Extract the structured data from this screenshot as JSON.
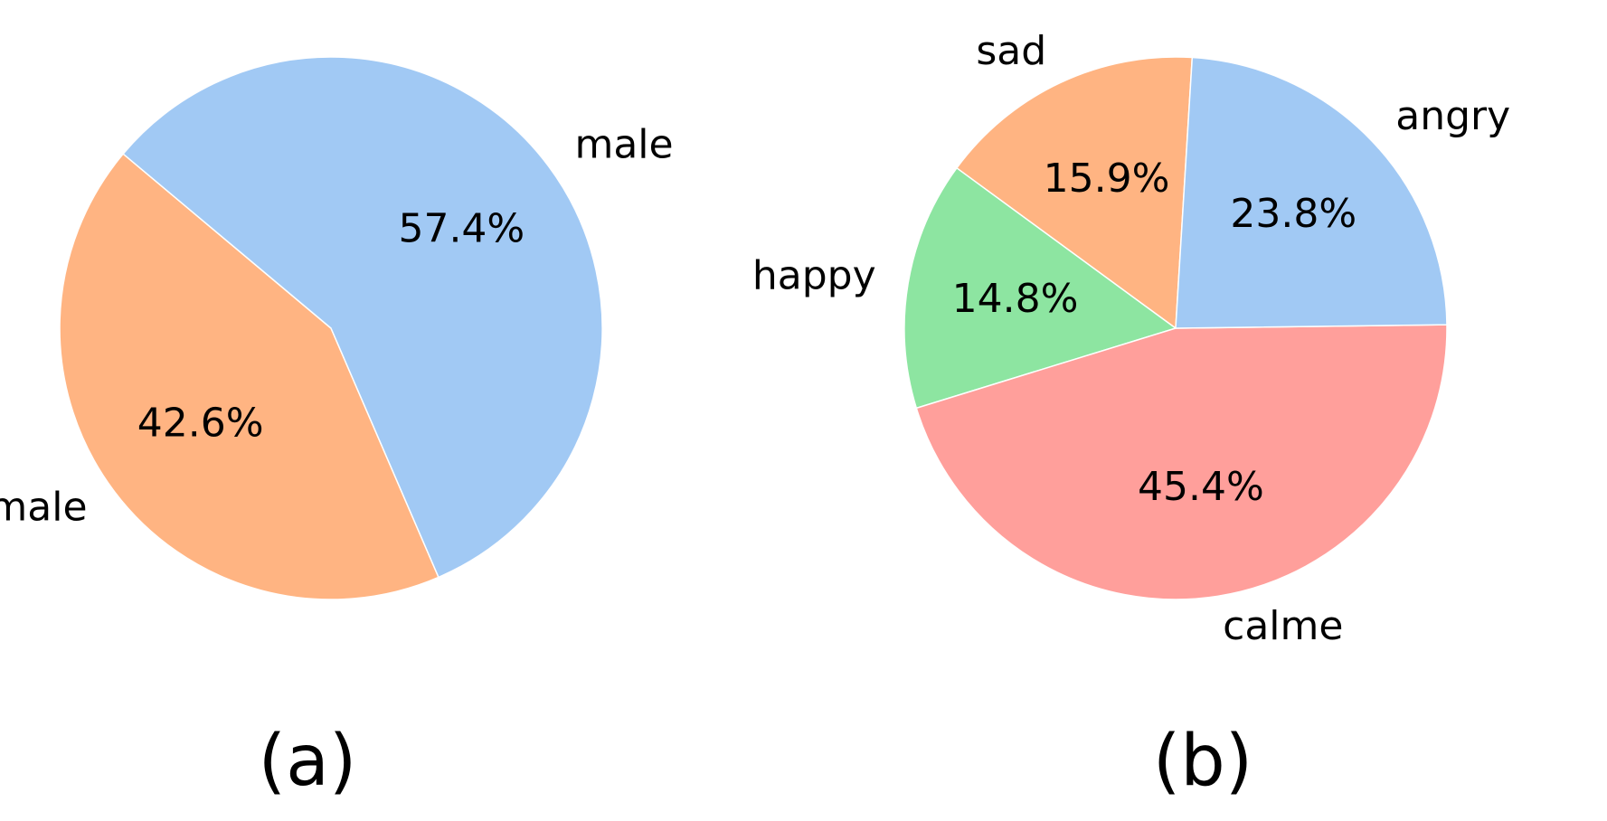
{
  "chart_data": [
    {
      "type": "pie",
      "caption": "(a)",
      "slices": [
        {
          "label": "female",
          "value": 42.6,
          "pct_label": "42.6%",
          "color": "#FFB482"
        },
        {
          "label": "male",
          "value": 57.4,
          "pct_label": "57.4%",
          "color": "#A1C9F4"
        }
      ]
    },
    {
      "type": "pie",
      "caption": "(b)",
      "slices": [
        {
          "label": "sad",
          "value": 15.9,
          "pct_label": "15.9%",
          "color": "#FFB482"
        },
        {
          "label": "happy",
          "value": 14.8,
          "pct_label": "14.8%",
          "color": "#8DE5A1"
        },
        {
          "label": "calme",
          "value": 45.4,
          "pct_label": "45.4%",
          "color": "#FF9F9B"
        },
        {
          "label": "angry",
          "value": 23.8,
          "pct_label": "23.8%",
          "color": "#A1C9F4"
        }
      ]
    }
  ]
}
